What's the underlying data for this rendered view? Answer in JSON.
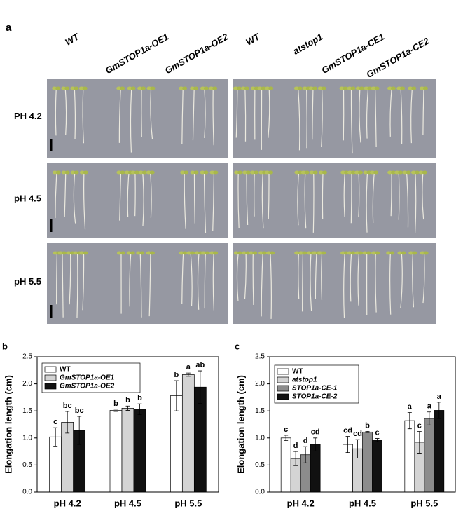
{
  "panel_a": {
    "label": "a",
    "columns": [
      "WT",
      "GmSTOP1a-OE1",
      "GmSTOP1a-OE2",
      "WT",
      "atstop1",
      "GmSTOP1a-CE1",
      "GmSTOP1a-CE2"
    ],
    "rows": [
      "PH 4.2",
      "pH 4.5",
      "pH 5.5"
    ]
  },
  "chart_data": [
    {
      "type": "bar",
      "panel": "b",
      "y_label": "Elongation length (cm)",
      "categories": [
        "pH 4.2",
        "pH 4.5",
        "pH 5.5"
      ],
      "ylim": [
        0,
        2.5
      ],
      "yticks": [
        {
          "value": 0,
          "label": "0.0"
        },
        0.5,
        {
          "value": 1,
          "label": "1.0"
        },
        1.5,
        {
          "value": 2,
          "label": "2.0"
        },
        2.5
      ],
      "legend": "upper left",
      "series": [
        {
          "name": "WT",
          "color": "#ffffff",
          "values": [
            1.02,
            1.51,
            1.78
          ],
          "errors": [
            0.17,
            0.02,
            0.28
          ],
          "letters": [
            "c",
            "b",
            "b"
          ]
        },
        {
          "name": "GmSTOP1a-OE1",
          "color": "#d4d4d4",
          "values": [
            1.29,
            1.55,
            2.17
          ],
          "errors": [
            0.2,
            0.04,
            0.03
          ],
          "letters": [
            "bc",
            "b",
            "a"
          ]
        },
        {
          "name": "GmSTOP1a-OE2",
          "color": "#111111",
          "values": [
            1.14,
            1.53,
            1.94
          ],
          "errors": [
            0.26,
            0.1,
            0.3
          ],
          "letters": [
            "bc",
            "b",
            "ab"
          ]
        }
      ]
    },
    {
      "type": "bar",
      "panel": "c",
      "y_label": "Elongation length (cm)",
      "categories": [
        "pH 4.2",
        "pH 4.5",
        "pH 5.5"
      ],
      "ylim": [
        0,
        2.5
      ],
      "yticks": [
        {
          "value": 0,
          "label": "0.0"
        },
        0.5,
        {
          "value": 1,
          "label": "1.0"
        },
        1.5,
        {
          "value": 2,
          "label": "2.0"
        },
        2.5
      ],
      "legend": "upper left",
      "series": [
        {
          "name": "WT",
          "color": "#ffffff",
          "values": [
            1.0,
            0.88,
            1.32
          ],
          "errors": [
            0.05,
            0.15,
            0.15
          ],
          "letters": [
            "c",
            "cd",
            "a"
          ]
        },
        {
          "name": "atstop1",
          "color": "#d4d4d4",
          "values": [
            0.62,
            0.8,
            0.92
          ],
          "errors": [
            0.13,
            0.17,
            0.2
          ],
          "letters": [
            "d",
            "cd",
            "c"
          ]
        },
        {
          "name": "STOP1a-CE-1",
          "color": "#8c8c8c",
          "values": [
            0.69,
            1.11,
            1.36
          ],
          "errors": [
            0.15,
            0.01,
            0.12
          ],
          "letters": [
            "d",
            "b",
            "a"
          ]
        },
        {
          "name": "STOP1a-CE-2",
          "color": "#111111",
          "values": [
            0.88,
            0.96,
            1.51
          ],
          "errors": [
            0.12,
            0.03,
            0.15
          ],
          "letters": [
            "cd",
            "c",
            "a"
          ]
        }
      ]
    }
  ]
}
